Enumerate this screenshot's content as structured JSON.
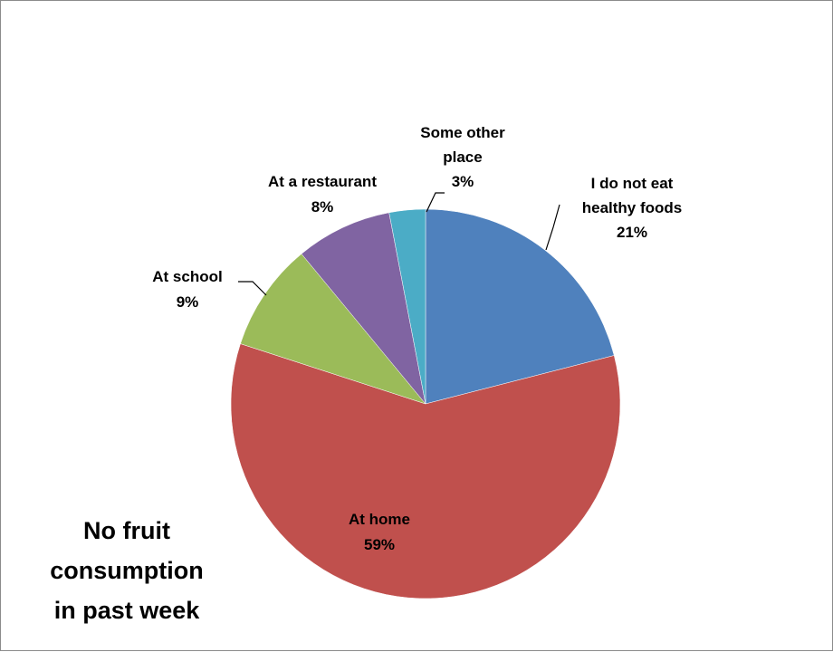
{
  "chart_data": {
    "type": "pie",
    "title": "",
    "caption_lines": [
      "No fruit",
      "consumption",
      "in past week"
    ],
    "start_angle_deg": 0,
    "direction": "clockwise",
    "slices": [
      {
        "label_lines": [
          "I do not eat",
          "healthy foods"
        ],
        "pct_label": "21%",
        "value": 21,
        "color": "#4f81bd"
      },
      {
        "label_lines": [
          "At home"
        ],
        "pct_label": "59%",
        "value": 59,
        "color": "#c0504d"
      },
      {
        "label_lines": [
          "At school"
        ],
        "pct_label": "9%",
        "value": 9,
        "color": "#9bbb59"
      },
      {
        "label_lines": [
          "At a restaurant"
        ],
        "pct_label": "8%",
        "value": 8,
        "color": "#8064a2"
      },
      {
        "label_lines": [
          "Some other",
          "place"
        ],
        "pct_label": "3%",
        "value": 3,
        "color": "#4bacc6"
      }
    ],
    "legend": "none",
    "data_labels": "category-and-percent"
  }
}
